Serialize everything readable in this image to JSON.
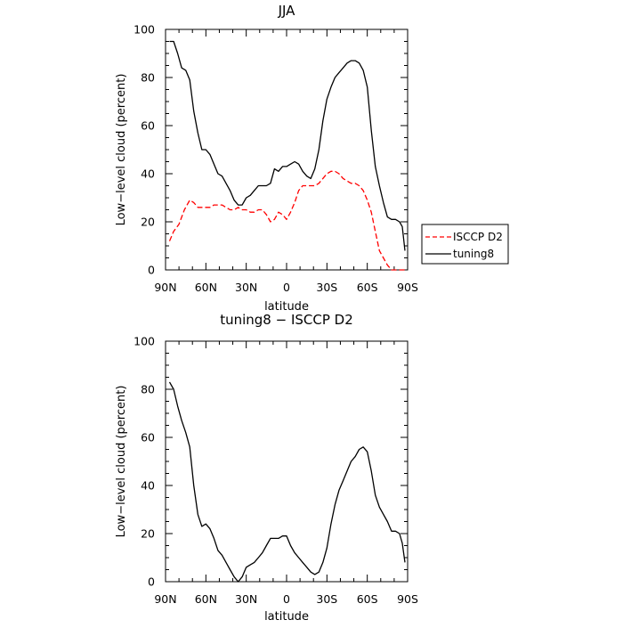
{
  "chart_data": [
    {
      "type": "line",
      "title": "JJA",
      "xlabel": "latitude",
      "ylabel": "Low−level cloud (percent)",
      "xlim": [
        90,
        -90
      ],
      "ylim": [
        0,
        100
      ],
      "xticks": [
        90,
        60,
        30,
        0,
        -30,
        -60,
        -90
      ],
      "xtick_labels": [
        "90N",
        "60N",
        "30N",
        "0",
        "30S",
        "60S",
        "90S"
      ],
      "yticks": [
        0,
        20,
        40,
        60,
        80,
        100
      ],
      "ytick_labels": [
        "0",
        "20",
        "40",
        "60",
        "80",
        "100"
      ],
      "legend": {
        "placement": "right",
        "entries": [
          "ISCCP D2",
          "tuning8"
        ]
      },
      "series": [
        {
          "name": "ISCCP D2",
          "color": "#ff0000",
          "dash": "dashed",
          "x": [
            87,
            84,
            80,
            76,
            72,
            69,
            66,
            63,
            60,
            57,
            54,
            51,
            48,
            45,
            42,
            39,
            36,
            33,
            30,
            27,
            24,
            21,
            18,
            15,
            12,
            9,
            6,
            3,
            0,
            -3,
            -6,
            -9,
            -12,
            -15,
            -18,
            -21,
            -24,
            -27,
            -30,
            -33,
            -36,
            -39,
            -42,
            -45,
            -48,
            -51,
            -54,
            -57,
            -60,
            -63,
            -66,
            -69,
            -72,
            -75,
            -78,
            -80,
            -82,
            -84,
            -86,
            -88
          ],
          "y": [
            12,
            16,
            19,
            25,
            29,
            28,
            26,
            26,
            26,
            26,
            27,
            27,
            27,
            26,
            25,
            25,
            26,
            25,
            25,
            24,
            24,
            25,
            25,
            23,
            20,
            21,
            24,
            23,
            21,
            24,
            28,
            33,
            35,
            35,
            35,
            35,
            36,
            38,
            40,
            41,
            41,
            40,
            38,
            37,
            36,
            36,
            35,
            33,
            29,
            24,
            16,
            8,
            5,
            2,
            0,
            0,
            0,
            0,
            0,
            0
          ]
        },
        {
          "name": "tuning8",
          "color": "#000000",
          "dash": "solid",
          "x": [
            87,
            84,
            81,
            78,
            75,
            72,
            69,
            66,
            63,
            60,
            57,
            54,
            51,
            48,
            45,
            42,
            39,
            36,
            33,
            30,
            27,
            24,
            21,
            18,
            15,
            12,
            9,
            6,
            3,
            0,
            -3,
            -6,
            -9,
            -12,
            -15,
            -18,
            -21,
            -24,
            -27,
            -30,
            -33,
            -36,
            -39,
            -42,
            -45,
            -48,
            -51,
            -54,
            -57,
            -60,
            -63,
            -66,
            -69,
            -72,
            -75,
            -78,
            -81,
            -84,
            -86,
            -88
          ],
          "y": [
            95,
            95,
            90,
            84,
            83,
            79,
            66,
            57,
            50,
            50,
            48,
            44,
            40,
            39,
            36,
            33,
            29,
            27,
            27,
            30,
            31,
            33,
            35,
            35,
            35,
            36,
            42,
            41,
            43,
            43,
            44,
            45,
            44,
            41,
            39,
            38,
            42,
            50,
            62,
            71,
            76,
            80,
            82,
            84,
            86,
            87,
            87,
            86,
            83,
            76,
            58,
            43,
            35,
            28,
            22,
            21,
            21,
            20,
            18,
            8
          ]
        }
      ]
    },
    {
      "type": "line",
      "title": "tuning8 − ISCCP D2",
      "xlabel": "latitude",
      "ylabel": "Low−level cloud (percent)",
      "xlim": [
        90,
        -90
      ],
      "ylim": [
        0,
        100
      ],
      "xticks": [
        90,
        60,
        30,
        0,
        -30,
        -60,
        -90
      ],
      "xtick_labels": [
        "90N",
        "60N",
        "30N",
        "0",
        "30S",
        "60S",
        "90S"
      ],
      "yticks": [
        0,
        20,
        40,
        60,
        80,
        100
      ],
      "ytick_labels": [
        "0",
        "20",
        "40",
        "60",
        "80",
        "100"
      ],
      "series": [
        {
          "color": "#000000",
          "dash": "solid",
          "x": [
            87,
            84,
            81,
            78,
            75,
            72,
            69,
            66,
            63,
            60,
            57,
            54,
            51,
            48,
            45,
            42,
            39,
            36,
            33,
            30,
            27,
            24,
            21,
            18,
            15,
            12,
            9,
            6,
            3,
            0,
            -3,
            -6,
            -9,
            -12,
            -15,
            -18,
            -21,
            -24,
            -27,
            -30,
            -33,
            -36,
            -39,
            -42,
            -45,
            -48,
            -51,
            -54,
            -57,
            -60,
            -63,
            -66,
            -69,
            -72,
            -75,
            -78,
            -81,
            -84,
            -86,
            -88
          ],
          "y": [
            83,
            80,
            73,
            67,
            62,
            56,
            40,
            28,
            23,
            24,
            22,
            18,
            13,
            11,
            8,
            5,
            2,
            0,
            2,
            6,
            7,
            8,
            10,
            12,
            15,
            18,
            18,
            18,
            19,
            19,
            15,
            12,
            10,
            8,
            6,
            4,
            3,
            4,
            8,
            14,
            24,
            32,
            38,
            42,
            46,
            50,
            52,
            55,
            56,
            54,
            46,
            36,
            31,
            28,
            25,
            21,
            21,
            20,
            16,
            8
          ]
        }
      ]
    }
  ]
}
